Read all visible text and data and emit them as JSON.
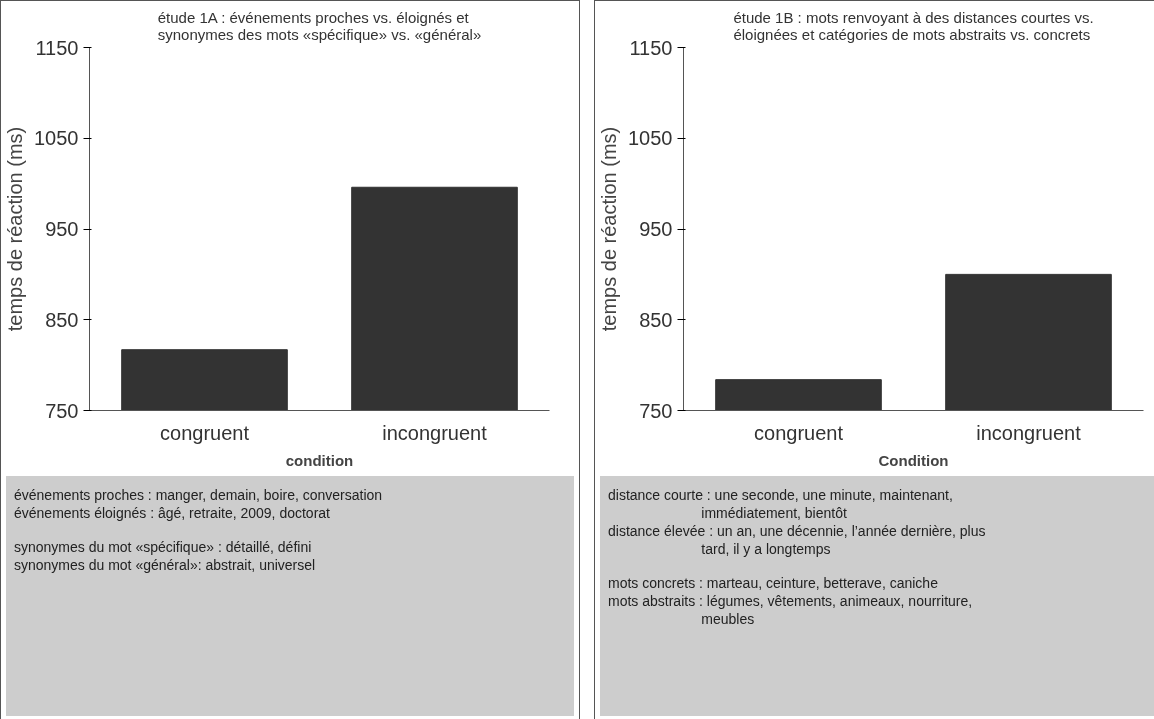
{
  "chart_data": [
    {
      "type": "bar",
      "title": "étude 1A : événements proches vs. éloignés et\nsynonymes des mots «spécifique» vs. «général»",
      "xlabel": "condition",
      "ylabel": "temps de réaction (ms)",
      "categories": [
        "congruent",
        "incongruent"
      ],
      "values": [
        817,
        996
      ],
      "color": "#333333",
      "ylim": [
        750,
        1150
      ],
      "yticks": [
        750,
        850,
        950,
        1050,
        1150
      ],
      "grid": false,
      "annotations": [
        "événements proches : manger, demain, boire, conversation\névénements éloignés : âgé, retraite, 2009, doctorat",
        "synonymes du mot «spécifique» : détaillé, défini\nsynonymes du mot «général»: abstrait, universel"
      ]
    },
    {
      "type": "bar",
      "title": "étude 1B : mots renvoyant à des distances courtes vs.\néloignées et catégories de mots abstraits vs. concrets",
      "xlabel": "Condition",
      "ylabel": "temps de réaction (ms)",
      "categories": [
        "congruent",
        "incongruent"
      ],
      "values": [
        784,
        900
      ],
      "color": "#333333",
      "ylim": [
        750,
        1150
      ],
      "yticks": [
        750,
        850,
        950,
        1050,
        1150
      ],
      "grid": false,
      "annotations": [
        "distance courte : une seconde, une minute, maintenant,\n                        immédiatement, bientôt\ndistance élevée : un an, une décennie, l’année dernière, plus\n                        tard, il y a longtemps",
        "mots concrets : marteau, ceinture, betterave, caniche\nmots abstraits : légumes, vêtements, animeaux, nourriture,\n                        meubles"
      ]
    }
  ]
}
